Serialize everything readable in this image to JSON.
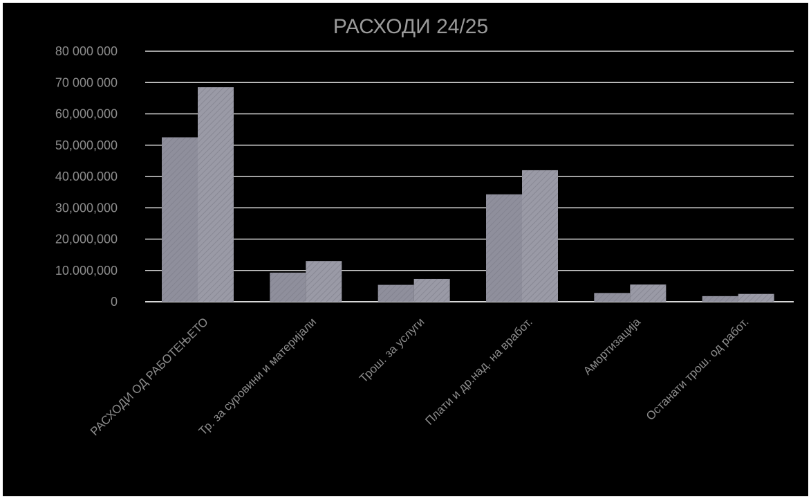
{
  "chart_data": {
    "type": "bar",
    "title": "РАСХОДИ 24/25",
    "xlabel": "",
    "ylabel": "",
    "ylim": [
      0,
      80000000
    ],
    "grid": true,
    "legend": "none",
    "y_tick_labels": [
      "0",
      "10.000,000",
      "20,000,000",
      "30,000,000",
      "40.000.000",
      "50,000,000",
      "60,000,000",
      "70 000 000",
      "80 000 000"
    ],
    "categories": [
      "РАСХОДИ ОД РАБОТЕЊЕТО",
      "Тр. за суровини и материјали",
      "Трош. за услуги",
      "Плати и др.над. на вработ.",
      "Амортизација",
      "Останати трош. од работ."
    ],
    "series": [
      {
        "values": [
          52500000,
          9300000,
          5400000,
          34300000,
          2800000,
          1800000
        ]
      },
      {
        "values": [
          68500000,
          13000000,
          7300000,
          42000000,
          5500000,
          2500000
        ]
      }
    ],
    "colors": {
      "series": [
        "#8f8f9c",
        "#9a9aa6"
      ],
      "background": "#000000",
      "grid": "#d8d8d8",
      "text": "#8c8c8c"
    }
  }
}
